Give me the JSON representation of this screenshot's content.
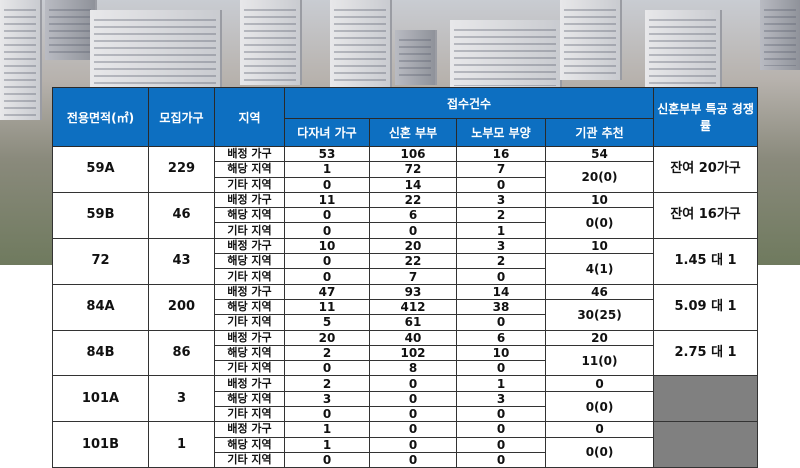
{
  "headers": {
    "area": "전용면적(㎡)",
    "households": "모집가구",
    "region": "지역",
    "applications": "접수건수",
    "multi_child": "다자녀 가구",
    "newlywed": "신혼 부부",
    "elderly_parents": "노부모 부양",
    "institution": "기관 추천",
    "competition": "신혼부부 특공 경쟁률"
  },
  "region_labels": [
    "배정 가구",
    "해당 지역",
    "기타 지역"
  ],
  "rows": [
    {
      "area": "59A",
      "households": "229",
      "multi_child": [
        "53",
        "1",
        "0"
      ],
      "newlywed": [
        "106",
        "72",
        "14"
      ],
      "elderly_parents": [
        "16",
        "7",
        "0"
      ],
      "institution": [
        "54",
        "20(0)"
      ],
      "competition": "잔여 20가구"
    },
    {
      "area": "59B",
      "households": "46",
      "multi_child": [
        "11",
        "0",
        "0"
      ],
      "newlywed": [
        "22",
        "6",
        "0"
      ],
      "elderly_parents": [
        "3",
        "2",
        "1"
      ],
      "institution": [
        "10",
        "0(0)"
      ],
      "competition": "잔여 16가구"
    },
    {
      "area": "72",
      "households": "43",
      "multi_child": [
        "10",
        "0",
        "0"
      ],
      "newlywed": [
        "20",
        "22",
        "7"
      ],
      "elderly_parents": [
        "3",
        "2",
        "0"
      ],
      "institution": [
        "10",
        "4(1)"
      ],
      "competition": "1.45 대 1"
    },
    {
      "area": "84A",
      "households": "200",
      "multi_child": [
        "47",
        "11",
        "5"
      ],
      "newlywed": [
        "93",
        "412",
        "61"
      ],
      "elderly_parents": [
        "14",
        "38",
        "0"
      ],
      "institution": [
        "46",
        "30(25)"
      ],
      "competition": "5.09 대 1"
    },
    {
      "area": "84B",
      "households": "86",
      "multi_child": [
        "20",
        "2",
        "0"
      ],
      "newlywed": [
        "40",
        "102",
        "8"
      ],
      "elderly_parents": [
        "6",
        "10",
        "0"
      ],
      "institution": [
        "20",
        "11(0)"
      ],
      "competition": "2.75 대 1"
    },
    {
      "area": "101A",
      "households": "3",
      "multi_child": [
        "2",
        "3",
        "0"
      ],
      "newlywed": [
        "0",
        "0",
        "0"
      ],
      "elderly_parents": [
        "1",
        "3",
        "0"
      ],
      "institution": [
        "0",
        "0(0)"
      ],
      "competition": null
    },
    {
      "area": "101B",
      "households": "1",
      "multi_child": [
        "1",
        "1",
        "0"
      ],
      "newlywed": [
        "0",
        "0",
        "0"
      ],
      "elderly_parents": [
        "0",
        "0",
        "0"
      ],
      "institution": [
        "0",
        "0(0)"
      ],
      "competition": null
    }
  ],
  "colors": {
    "header_bg": "#0d6fc1",
    "empty_cell": "#808080"
  }
}
